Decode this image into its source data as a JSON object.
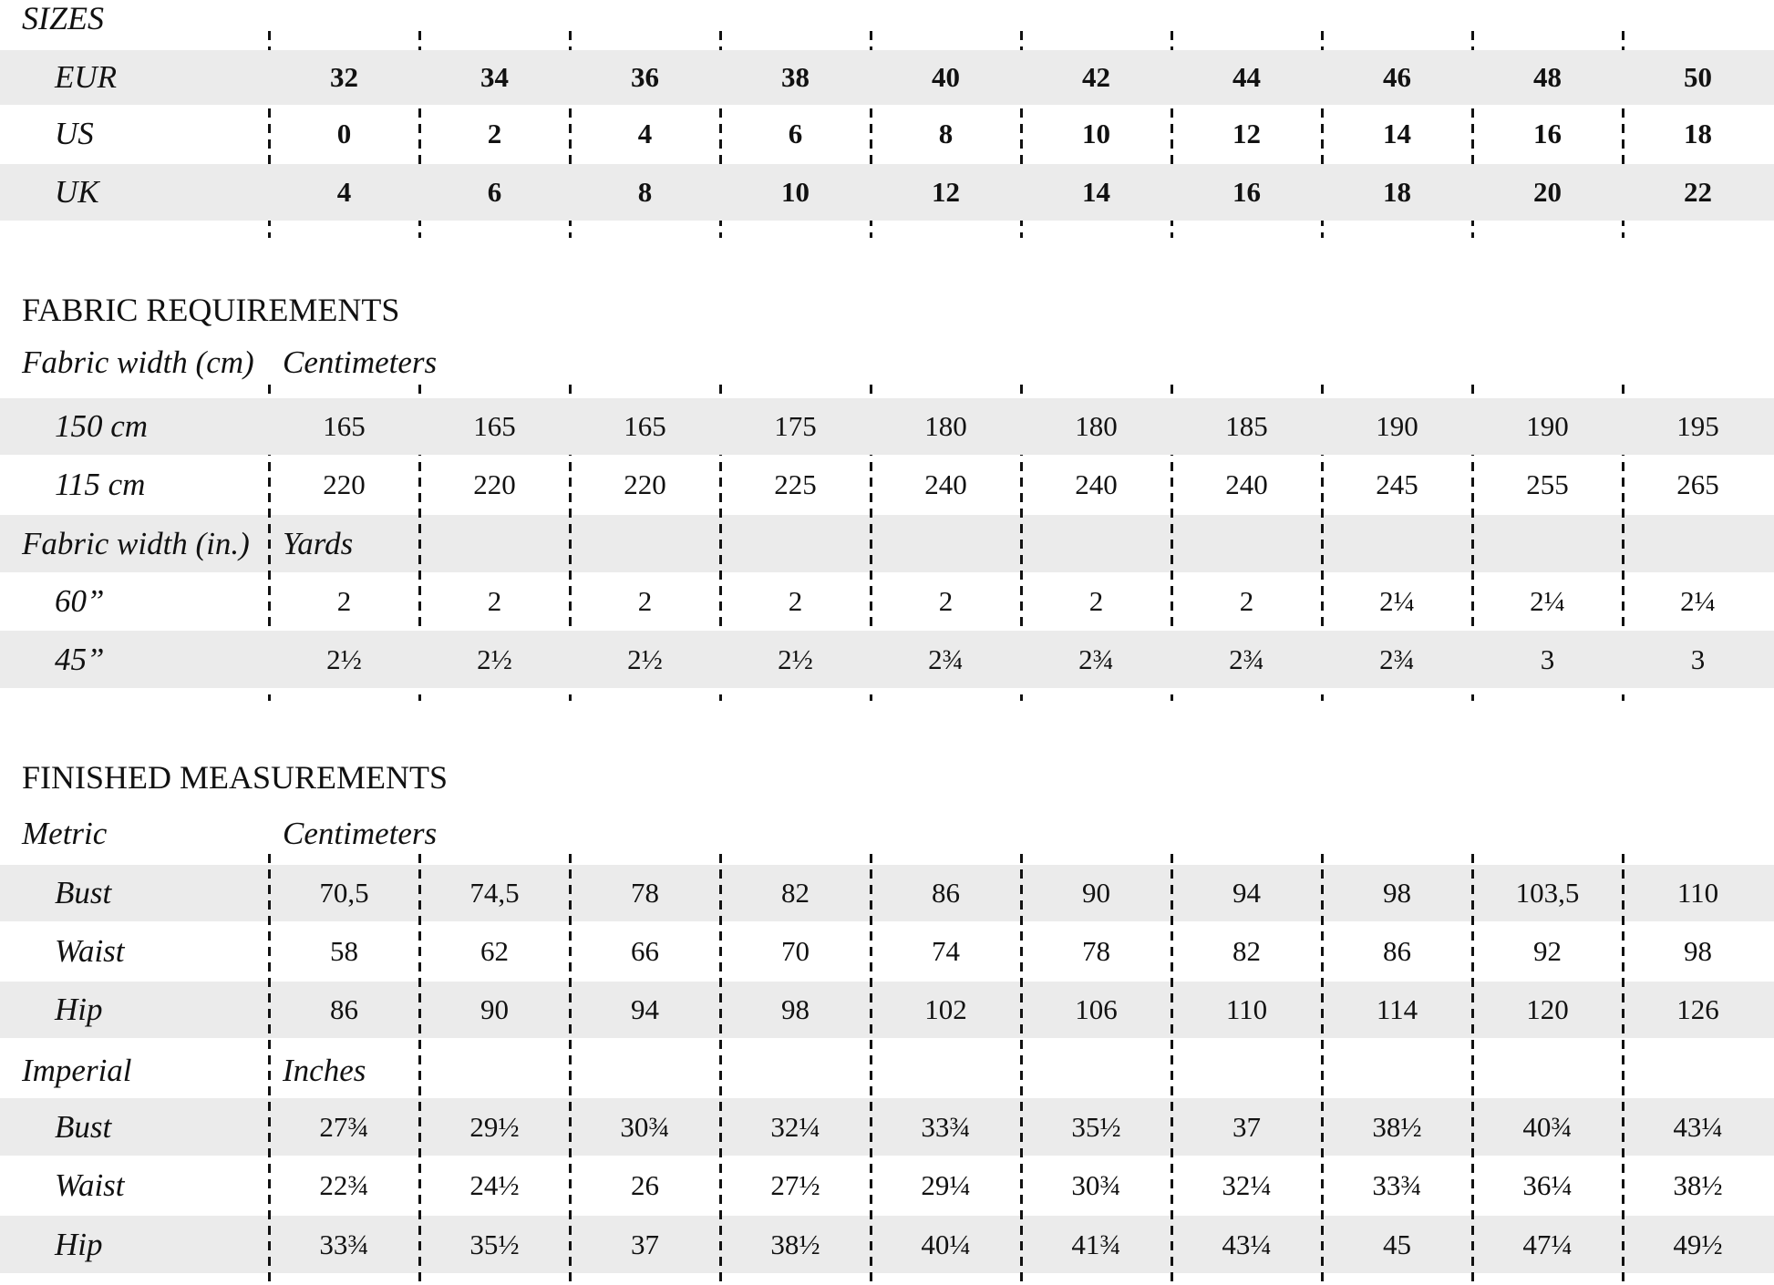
{
  "sizes": {
    "title": "SIZES",
    "rows": [
      {
        "label": "EUR",
        "values": [
          "32",
          "34",
          "36",
          "38",
          "40",
          "42",
          "44",
          "46",
          "48",
          "50"
        ]
      },
      {
        "label": "US",
        "values": [
          "0",
          "2",
          "4",
          "6",
          "8",
          "10",
          "12",
          "14",
          "16",
          "18"
        ]
      },
      {
        "label": "UK",
        "values": [
          "4",
          "6",
          "8",
          "10",
          "12",
          "14",
          "16",
          "18",
          "20",
          "22"
        ]
      }
    ]
  },
  "fabric": {
    "title": "FABRIC REQUIREMENTS",
    "groups": [
      {
        "label": "Fabric width (cm)",
        "unit": "Centimeters",
        "rows": [
          {
            "label": "150 cm",
            "values": [
              "165",
              "165",
              "165",
              "175",
              "180",
              "180",
              "185",
              "190",
              "190",
              "195"
            ]
          },
          {
            "label": "115 cm",
            "values": [
              "220",
              "220",
              "220",
              "225",
              "240",
              "240",
              "240",
              "245",
              "255",
              "265"
            ]
          }
        ]
      },
      {
        "label": "Fabric width (in.)",
        "unit": "Yards",
        "rows": [
          {
            "label": "60”",
            "values": [
              "2",
              "2",
              "2",
              "2",
              "2",
              "2",
              "2",
              "2¼",
              "2¼",
              "2¼"
            ]
          },
          {
            "label": "45”",
            "values": [
              "2½",
              "2½",
              "2½",
              "2½",
              "2¾",
              "2¾",
              "2¾",
              "2¾",
              "3",
              "3"
            ]
          }
        ]
      }
    ]
  },
  "finished": {
    "title": "FINISHED MEASUREMENTS",
    "groups": [
      {
        "label": "Metric",
        "unit": "Centimeters",
        "rows": [
          {
            "label": "Bust",
            "values": [
              "70,5",
              "74,5",
              "78",
              "82",
              "86",
              "90",
              "94",
              "98",
              "103,5",
              "110"
            ]
          },
          {
            "label": "Waist",
            "values": [
              "58",
              "62",
              "66",
              "70",
              "74",
              "78",
              "82",
              "86",
              "92",
              "98"
            ]
          },
          {
            "label": "Hip",
            "values": [
              "86",
              "90",
              "94",
              "98",
              "102",
              "106",
              "110",
              "114",
              "120",
              "126"
            ]
          }
        ]
      },
      {
        "label": "Imperial",
        "unit": "Inches",
        "rows": [
          {
            "label": "Bust",
            "values": [
              "27¾",
              "29½",
              "30¾",
              "32¼",
              "33¾",
              "35½",
              "37",
              "38½",
              "40¾",
              "43¼"
            ]
          },
          {
            "label": "Waist",
            "values": [
              "22¾",
              "24½",
              "26",
              "27½",
              "29¼",
              "30¾",
              "32¼",
              "33¾",
              "36¼",
              "38½"
            ]
          },
          {
            "label": "Hip",
            "values": [
              "33¾",
              "35½",
              "37",
              "38½",
              "40¼",
              "41¾",
              "43¼",
              "45",
              "47¼",
              "49½"
            ]
          }
        ]
      }
    ]
  },
  "colors": {
    "band": "#ebebeb",
    "text": "#111111"
  }
}
